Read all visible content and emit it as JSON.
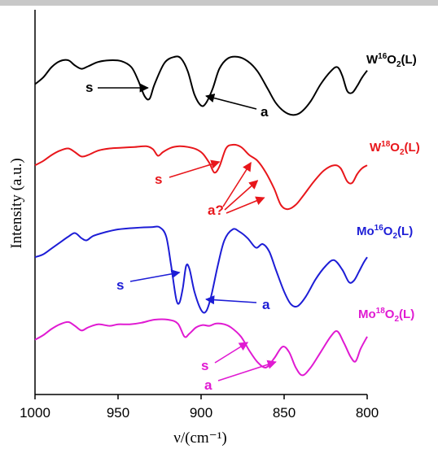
{
  "chart_data": {
    "type": "line",
    "xlabel": "ν/(cm⁻¹)",
    "ylabel": "Intensity (a.u.)",
    "xlim": [
      1000,
      800
    ],
    "x_reversed": true,
    "x_ticks": [
      "1000",
      "950",
      "900",
      "850",
      "800"
    ],
    "grid": false,
    "legend": "labels beside each trace at right",
    "series": [
      {
        "id": "w16",
        "label": {
          "base": "W",
          "iso": "16",
          "mid": "O",
          "sub": "2",
          "tail": "(L)"
        },
        "color": "#000000",
        "points": [
          [
            1000,
            0.3
          ],
          [
            995,
            0.22
          ],
          [
            990,
            0.1
          ],
          [
            985,
            0.03
          ],
          [
            980,
            0.02
          ],
          [
            976,
            0.08
          ],
          [
            972,
            0.12
          ],
          [
            968,
            0.09
          ],
          [
            962,
            0.04
          ],
          [
            955,
            0.02
          ],
          [
            948,
            0.03
          ],
          [
            942,
            0.1
          ],
          [
            938,
            0.25
          ],
          [
            934,
            0.44
          ],
          [
            931,
            0.47
          ],
          [
            928,
            0.3
          ],
          [
            922,
            0.05
          ],
          [
            916,
            -0.02
          ],
          [
            912,
            0.0
          ],
          [
            908,
            0.15
          ],
          [
            904,
            0.42
          ],
          [
            900,
            0.55
          ],
          [
            897,
            0.52
          ],
          [
            893,
            0.35
          ],
          [
            889,
            0.12
          ],
          [
            884,
            0.0
          ],
          [
            878,
            -0.02
          ],
          [
            872,
            0.03
          ],
          [
            866,
            0.15
          ],
          [
            860,
            0.35
          ],
          [
            855,
            0.52
          ],
          [
            850,
            0.62
          ],
          [
            845,
            0.66
          ],
          [
            840,
            0.63
          ],
          [
            834,
            0.5
          ],
          [
            828,
            0.3
          ],
          [
            822,
            0.15
          ],
          [
            818,
            0.1
          ],
          [
            815,
            0.2
          ],
          [
            812,
            0.38
          ],
          [
            809,
            0.4
          ],
          [
            806,
            0.32
          ],
          [
            803,
            0.22
          ],
          [
            800,
            0.14
          ]
        ],
        "annotations": [
          {
            "text": "s",
            "arrow_to_x": 932
          },
          {
            "text": "a",
            "arrow_to_x": 897
          }
        ]
      },
      {
        "id": "w18",
        "label": {
          "base": "W",
          "iso": "18",
          "mid": "O",
          "sub": "2",
          "tail": "(L)"
        },
        "color": "#e8161b",
        "points": [
          [
            1000,
            0.28
          ],
          [
            995,
            0.22
          ],
          [
            990,
            0.14
          ],
          [
            985,
            0.08
          ],
          [
            980,
            0.05
          ],
          [
            976,
            0.1
          ],
          [
            972,
            0.16
          ],
          [
            968,
            0.14
          ],
          [
            962,
            0.08
          ],
          [
            955,
            0.05
          ],
          [
            948,
            0.04
          ],
          [
            940,
            0.03
          ],
          [
            933,
            0.02
          ],
          [
            929,
            0.06
          ],
          [
            926,
            0.15
          ],
          [
            923,
            0.1
          ],
          [
            918,
            0.04
          ],
          [
            913,
            0.02
          ],
          [
            908,
            0.03
          ],
          [
            903,
            0.06
          ],
          [
            899,
            0.12
          ],
          [
            895,
            0.25
          ],
          [
            892,
            0.38
          ],
          [
            889,
            0.3
          ],
          [
            885,
            0.05
          ],
          [
            881,
            0.0
          ],
          [
            876,
            0.03
          ],
          [
            871,
            0.14
          ],
          [
            866,
            0.22
          ],
          [
            861,
            0.38
          ],
          [
            856,
            0.6
          ],
          [
            852,
            0.82
          ],
          [
            848,
            0.88
          ],
          [
            843,
            0.82
          ],
          [
            838,
            0.68
          ],
          [
            832,
            0.5
          ],
          [
            826,
            0.35
          ],
          [
            820,
            0.28
          ],
          [
            816,
            0.32
          ],
          [
            812,
            0.5
          ],
          [
            809,
            0.52
          ],
          [
            806,
            0.4
          ],
          [
            803,
            0.32
          ],
          [
            800,
            0.28
          ]
        ],
        "annotations": [
          {
            "text": "s",
            "arrow_to_x": 889
          },
          {
            "text": "a?",
            "arrow_to_x": 870
          },
          {
            "text": "a?",
            "arrow_to_x": 866
          },
          {
            "text": "a?",
            "arrow_to_x": 862
          }
        ]
      },
      {
        "id": "mo16",
        "label": {
          "base": "Mo",
          "iso": "16",
          "mid": "O",
          "sub": "2",
          "tail": "(L)"
        },
        "color": "#1d1dd6",
        "points": [
          [
            1000,
            0.38
          ],
          [
            995,
            0.34
          ],
          [
            990,
            0.26
          ],
          [
            985,
            0.18
          ],
          [
            980,
            0.1
          ],
          [
            976,
            0.05
          ],
          [
            972,
            0.12
          ],
          [
            969,
            0.15
          ],
          [
            965,
            0.09
          ],
          [
            958,
            0.04
          ],
          [
            950,
            0.0
          ],
          [
            940,
            -0.02
          ],
          [
            930,
            -0.03
          ],
          [
            925,
            -0.03
          ],
          [
            921,
            0.1
          ],
          [
            918,
            0.5
          ],
          [
            915,
            0.95
          ],
          [
            913,
            1.0
          ],
          [
            911,
            0.8
          ],
          [
            909,
            0.5
          ],
          [
            907,
            0.54
          ],
          [
            904,
            0.85
          ],
          [
            900,
            1.1
          ],
          [
            897,
            1.12
          ],
          [
            894,
            0.92
          ],
          [
            890,
            0.5
          ],
          [
            886,
            0.15
          ],
          [
            881,
            0.0
          ],
          [
            877,
            0.03
          ],
          [
            872,
            0.12
          ],
          [
            867,
            0.25
          ],
          [
            863,
            0.2
          ],
          [
            859,
            0.3
          ],
          [
            855,
            0.55
          ],
          [
            850,
            0.85
          ],
          [
            846,
            1.02
          ],
          [
            842,
            1.05
          ],
          [
            837,
            0.92
          ],
          [
            831,
            0.68
          ],
          [
            825,
            0.5
          ],
          [
            820,
            0.42
          ],
          [
            815,
            0.55
          ],
          [
            811,
            0.72
          ],
          [
            808,
            0.7
          ],
          [
            805,
            0.58
          ],
          [
            802,
            0.45
          ],
          [
            800,
            0.38
          ]
        ],
        "annotations": [
          {
            "text": "s",
            "arrow_to_x": 913
          },
          {
            "text": "a",
            "arrow_to_x": 897
          }
        ]
      },
      {
        "id": "mo18",
        "label": {
          "base": "Mo",
          "iso": "18",
          "mid": "O",
          "sub": "2",
          "tail": "(L)"
        },
        "color": "#e01ad2",
        "points": [
          [
            1000,
            0.26
          ],
          [
            995,
            0.2
          ],
          [
            990,
            0.12
          ],
          [
            985,
            0.06
          ],
          [
            980,
            0.03
          ],
          [
            976,
            0.08
          ],
          [
            972,
            0.14
          ],
          [
            968,
            0.1
          ],
          [
            962,
            0.06
          ],
          [
            955,
            0.08
          ],
          [
            950,
            0.06
          ],
          [
            943,
            0.06
          ],
          [
            936,
            0.04
          ],
          [
            928,
            0.0
          ],
          [
            920,
            0.0
          ],
          [
            914,
            0.05
          ],
          [
            910,
            0.22
          ],
          [
            907,
            0.18
          ],
          [
            903,
            0.1
          ],
          [
            899,
            0.07
          ],
          [
            895,
            0.08
          ],
          [
            891,
            0.05
          ],
          [
            886,
            0.06
          ],
          [
            882,
            0.1
          ],
          [
            876,
            0.22
          ],
          [
            871,
            0.4
          ],
          [
            866,
            0.55
          ],
          [
            861,
            0.62
          ],
          [
            856,
            0.5
          ],
          [
            851,
            0.35
          ],
          [
            847,
            0.42
          ],
          [
            843,
            0.62
          ],
          [
            839,
            0.72
          ],
          [
            834,
            0.62
          ],
          [
            828,
            0.42
          ],
          [
            822,
            0.22
          ],
          [
            818,
            0.15
          ],
          [
            814,
            0.3
          ],
          [
            810,
            0.48
          ],
          [
            807,
            0.54
          ],
          [
            804,
            0.38
          ],
          [
            800,
            0.22
          ]
        ],
        "annotations": [
          {
            "text": "s",
            "arrow_to_x": 872
          },
          {
            "text": "a",
            "arrow_to_x": 855
          }
        ]
      }
    ]
  }
}
